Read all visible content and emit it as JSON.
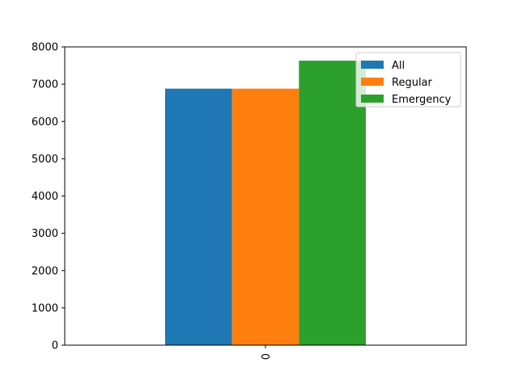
{
  "chart_data": {
    "type": "bar",
    "categories": [
      "0"
    ],
    "series": [
      {
        "name": "All",
        "values": [
          6880
        ],
        "color": "#1f77b4"
      },
      {
        "name": "Regular",
        "values": [
          6880
        ],
        "color": "#ff7f0e"
      },
      {
        "name": "Emergency",
        "values": [
          7630
        ],
        "color": "#2ca02c"
      }
    ],
    "ylim": [
      0,
      8000
    ],
    "yticks": [
      0,
      1000,
      2000,
      3000,
      4000,
      5000,
      6000,
      7000,
      8000
    ],
    "title": "",
    "xlabel": "",
    "ylabel": "",
    "legend": "top-right",
    "grid": false
  }
}
